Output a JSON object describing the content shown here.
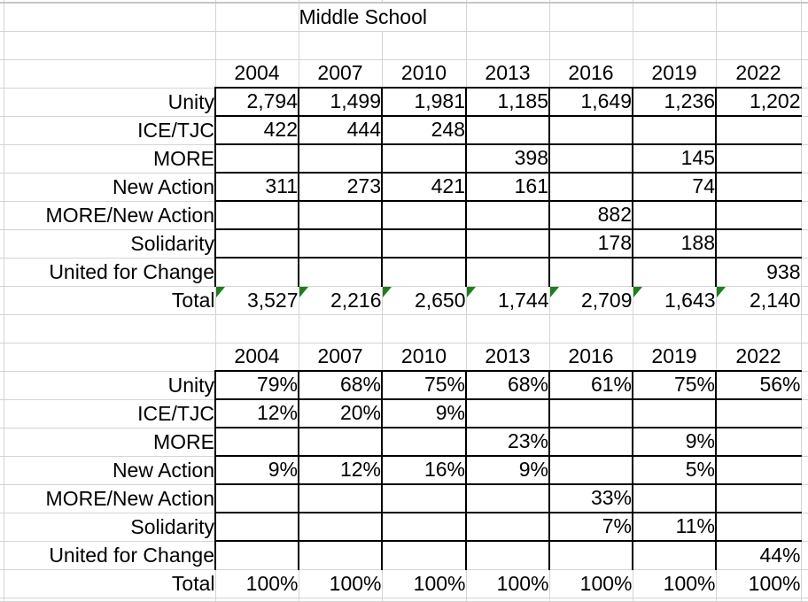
{
  "title": "Middle School",
  "years": [
    "2004",
    "2007",
    "2010",
    "2013",
    "2016",
    "2019",
    "2022"
  ],
  "counts_table": {
    "rows": [
      {
        "label": "Unity",
        "values": [
          "2,794",
          "1,499",
          "1,981",
          "1,185",
          "1,649",
          "1,236",
          "1,202"
        ]
      },
      {
        "label": "ICE/TJC",
        "values": [
          "422",
          "444",
          "248",
          "",
          "",
          "",
          ""
        ]
      },
      {
        "label": "MORE",
        "values": [
          "",
          "",
          "",
          "398",
          "",
          "145",
          ""
        ]
      },
      {
        "label": "New Action",
        "values": [
          "311",
          "273",
          "421",
          "161",
          "",
          "74",
          ""
        ]
      },
      {
        "label": "MORE/New Action",
        "values": [
          "",
          "",
          "",
          "",
          "882",
          "",
          ""
        ]
      },
      {
        "label": "Solidarity",
        "values": [
          "",
          "",
          "",
          "",
          "178",
          "188",
          ""
        ]
      },
      {
        "label": "United for Change",
        "values": [
          "",
          "",
          "",
          "",
          "",
          "",
          "938"
        ]
      }
    ],
    "total": {
      "label": "Total",
      "values": [
        "3,527",
        "2,216",
        "2,650",
        "1,744",
        "2,709",
        "1,643",
        "2,140"
      ]
    }
  },
  "percent_table": {
    "rows": [
      {
        "label": "Unity",
        "values": [
          "79%",
          "68%",
          "75%",
          "68%",
          "61%",
          "75%",
          "56%"
        ]
      },
      {
        "label": "ICE/TJC",
        "values": [
          "12%",
          "20%",
          "9%",
          "",
          "",
          "",
          ""
        ]
      },
      {
        "label": "MORE",
        "values": [
          "",
          "",
          "",
          "23%",
          "",
          "9%",
          ""
        ]
      },
      {
        "label": "New Action",
        "values": [
          "9%",
          "12%",
          "16%",
          "9%",
          "",
          "5%",
          ""
        ]
      },
      {
        "label": "MORE/New Action",
        "values": [
          "",
          "",
          "",
          "",
          "33%",
          "",
          ""
        ]
      },
      {
        "label": "Solidarity",
        "values": [
          "",
          "",
          "",
          "",
          "7%",
          "11%",
          ""
        ]
      },
      {
        "label": "United for Change",
        "values": [
          "",
          "",
          "",
          "",
          "",
          "",
          "44%"
        ]
      }
    ],
    "total": {
      "label": "Total",
      "values": [
        "100%",
        "100%",
        "100%",
        "100%",
        "100%",
        "100%",
        "100%"
      ]
    }
  },
  "icons": {
    "error_indicator": "green-corner-triangle"
  },
  "colors": {
    "background": "#ffffff",
    "text": "#000000",
    "gridline": "#d4d4d4",
    "cell_border": "#000000",
    "error_indicator_green": "#1f7d1f"
  }
}
